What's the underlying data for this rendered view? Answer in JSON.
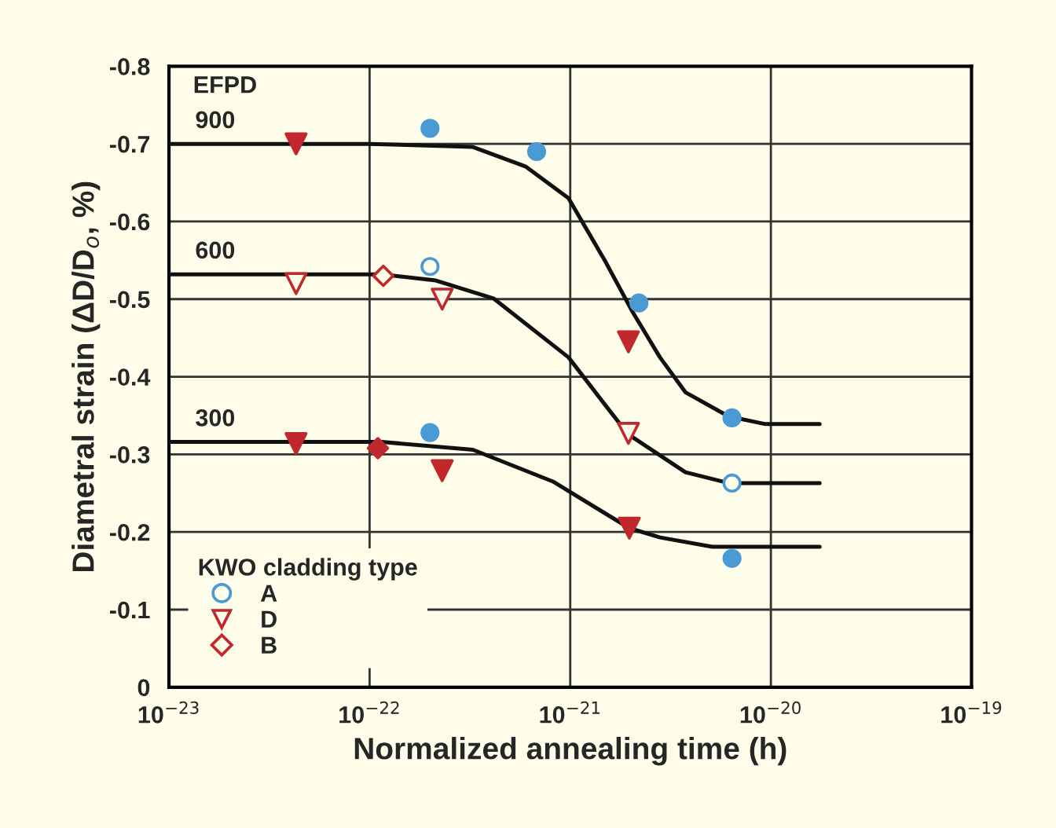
{
  "chart_data": {
    "type": "scatter",
    "xlabel": "Normalized annealing time (h)",
    "ylabel": "Diametral strain (ΔD/D$_{o}$, %)",
    "legend_title": "KWO cladding type",
    "legend": "bottom left",
    "grid": true,
    "log": "x",
    "xlim": [
      1e-23,
      1e-19
    ],
    "xticks": [
      {
        "value": 1e-23,
        "label": "10$^{−23}$"
      },
      {
        "value": 1e-22,
        "label": "10$^{−22}$"
      },
      {
        "value": 1e-21,
        "label": "10$^{−21}$"
      },
      {
        "value": 1e-20,
        "label": "10$^{−20}$"
      },
      {
        "value": 1e-19,
        "label": "10$^{−19}$"
      }
    ],
    "ylim": [
      0,
      -0.8
    ],
    "yticks": [
      0,
      -0.1,
      -0.2,
      -0.3,
      -0.4,
      -0.5,
      -0.6,
      -0.7,
      -0.8
    ],
    "annotations": [
      "EFPD"
    ],
    "series": [
      {
        "name": "A",
        "marker": "circle",
        "color": "#4a9ad4",
        "x": [
          2e-22,
          6.4e-21
        ],
        "values": [
          -0.542,
          -0.263
        ]
      },
      {
        "name": "D",
        "marker": "triangle",
        "color": "#c0282d",
        "x": [
          4.3e-23,
          2.3e-22,
          1.95e-21
        ],
        "values": [
          -0.52,
          -0.5,
          -0.327
        ]
      },
      {
        "name": "B",
        "marker": "diamond",
        "color": "#c0282d",
        "x": [
          1.17e-22
        ],
        "values": [
          -0.53
        ]
      },
      {
        "marker": "circle",
        "color": "#4a9ad4",
        "x": [
          2e-22,
          6.8e-22,
          2.2e-21,
          6.4e-21,
          2e-22,
          6.4e-21
        ],
        "values": [
          -0.72,
          -0.69,
          -0.495,
          -0.347,
          -0.328,
          -0.166
        ]
      },
      {
        "marker": "triangle",
        "color": "#c0282d",
        "x": [
          4.3e-23,
          1.95e-21,
          4.3e-23,
          2.3e-22,
          1.97e-21
        ],
        "values": [
          -0.7,
          -0.445,
          -0.314,
          -0.279,
          -0.205
        ]
      },
      {
        "marker": "diamond",
        "color": "#c0282d",
        "x": [
          1.1e-22
        ],
        "values": [
          -0.308
        ]
      },
      {
        "name": "900",
        "type": "line",
        "color": "#111111",
        "x": [
          1e-23,
          1e-22,
          3.27e-22,
          5.98e-22,
          9.8e-22,
          1.5e-21,
          2.05e-21,
          2.8e-21,
          3.75e-21,
          6.15e-21,
          9.4e-21,
          1.75e-20
        ],
        "values": [
          -0.7,
          -0.7,
          -0.696,
          -0.671,
          -0.63,
          -0.548,
          -0.483,
          -0.425,
          -0.38,
          -0.349,
          -0.339,
          -0.339
        ]
      },
      {
        "name": "600",
        "type": "line",
        "color": "#111111",
        "x": [
          1e-23,
          1.15e-22,
          2.14e-22,
          4.14e-22,
          9.8e-22,
          1.5e-21,
          1.94e-21,
          3.75e-21,
          6.15e-21,
          1.75e-20
        ],
        "values": [
          -0.532,
          -0.532,
          -0.524,
          -0.501,
          -0.425,
          -0.363,
          -0.326,
          -0.277,
          -0.263,
          -0.263
        ]
      },
      {
        "name": "300",
        "type": "line",
        "color": "#111111",
        "x": [
          1e-23,
          1.15e-22,
          3.27e-22,
          8.2e-22,
          1.97e-21,
          2.8e-21,
          5.1e-21,
          1.75e-20
        ],
        "values": [
          -0.316,
          -0.316,
          -0.306,
          -0.265,
          -0.205,
          -0.193,
          -0.181,
          -0.181
        ]
      }
    ]
  }
}
